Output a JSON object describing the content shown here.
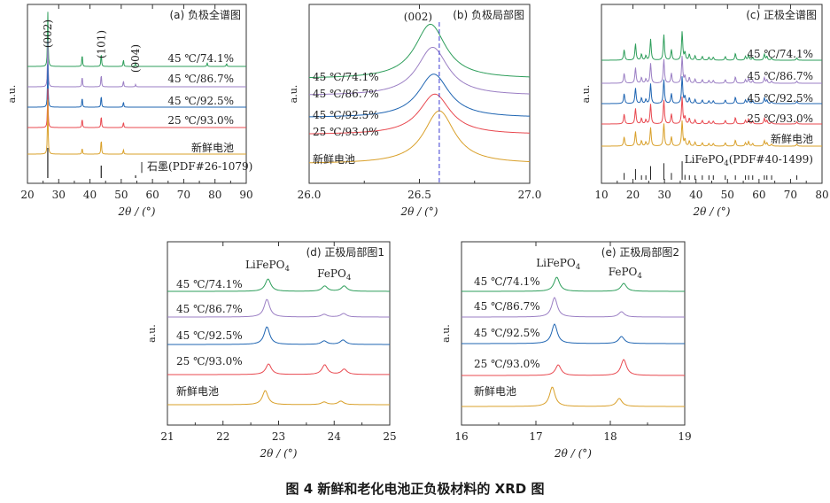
{
  "caption": "图 4   新鲜和老化电池正负极材料的 XRD 图",
  "colors": {
    "45 ℃/74.1%": "#2e9e5b",
    "45 ℃/86.7%": "#9b7fc4",
    "45 ℃/92.5%": "#1f65b2",
    "25 ℃/93.0%": "#e8484f",
    "新鲜电池": "#d9a02a",
    "reference": "#222222",
    "dashed": "#3a3ad0"
  },
  "chart_data": [
    {
      "id": "a",
      "type": "line",
      "title": "(a) 负极全谱图",
      "xlabel": "2θ / (°)",
      "ylabel": "a.u.",
      "xlim": [
        20,
        90
      ],
      "xticks": [
        20,
        30,
        40,
        50,
        60,
        70,
        80,
        90
      ],
      "series": [
        {
          "name": "45 ℃/74.1%",
          "peaks": [
            [
              26.5,
              70
            ],
            [
              37.5,
              16
            ],
            [
              43.6,
              18
            ],
            [
              50.7,
              9
            ],
            [
              54.6,
              4
            ],
            [
              77.5,
              5
            ],
            [
              83.7,
              4
            ]
          ]
        },
        {
          "name": "45 ℃/86.7%",
          "peaks": [
            [
              26.5,
              60
            ],
            [
              37.5,
              14
            ],
            [
              43.6,
              17
            ],
            [
              50.7,
              8
            ],
            [
              54.6,
              3
            ]
          ]
        },
        {
          "name": "45 ℃/92.5%",
          "peaks": [
            [
              26.5,
              55
            ],
            [
              37.5,
              13
            ],
            [
              43.6,
              16
            ],
            [
              50.7,
              7
            ]
          ]
        },
        {
          "name": "25 ℃/93.0%",
          "peaks": [
            [
              26.5,
              50
            ],
            [
              37.5,
              12
            ],
            [
              43.6,
              16
            ],
            [
              50.7,
              7
            ]
          ]
        },
        {
          "name": "新鲜电池",
          "peaks": [
            [
              26.5,
              70
            ],
            [
              37.5,
              8
            ],
            [
              43.6,
              20
            ],
            [
              50.7,
              6
            ]
          ]
        }
      ],
      "reference": {
        "name": "石墨(PDF#26-1079)",
        "lines": [
          [
            26.5,
            34
          ],
          [
            43.6,
            14
          ],
          [
            54.6,
            3
          ]
        ]
      },
      "annotations": [
        {
          "text": "(002)",
          "x": 26.5
        },
        {
          "text": "(101)",
          "x": 43.6
        },
        {
          "text": "(004)",
          "x": 54.6
        }
      ]
    },
    {
      "id": "b",
      "type": "line",
      "title": "(b) 负极局部图",
      "xlabel": "2θ / (°)",
      "ylabel": "a.u.",
      "xlim": [
        26.0,
        27.0
      ],
      "xticks": [
        26.0,
        26.5,
        27.0
      ],
      "xtick_labels": [
        "26.0",
        "26.5",
        "27.0"
      ],
      "series": [
        {
          "name": "45 ℃/74.1%",
          "center": 26.55,
          "height": 70
        },
        {
          "name": "45 ℃/86.7%",
          "center": 26.56,
          "height": 62
        },
        {
          "name": "45 ℃/92.5%",
          "center": 26.565,
          "height": 56
        },
        {
          "name": "25 ℃/93.0%",
          "center": 26.57,
          "height": 52
        },
        {
          "name": "新鲜电池",
          "center": 26.59,
          "height": 68
        }
      ],
      "dashed_line_x": 26.59,
      "annotations": [
        {
          "text": "(002)",
          "x": 26.55
        }
      ]
    },
    {
      "id": "c",
      "type": "line",
      "title": "(c) 正极全谱图",
      "xlabel": "2θ / (°)",
      "ylabel": "a.u.",
      "xlim": [
        10,
        80
      ],
      "xticks": [
        10,
        20,
        30,
        40,
        50,
        60,
        70,
        80
      ],
      "series_names": [
        "45 ℃/74.1%",
        "45 ℃/86.7%",
        "45 ℃/92.5%",
        "25 ℃/93.0%",
        "新鲜电池"
      ],
      "peaks": [
        [
          17.2,
          14
        ],
        [
          20.8,
          22
        ],
        [
          22.7,
          8
        ],
        [
          24.1,
          6
        ],
        [
          25.6,
          28
        ],
        [
          29.8,
          34
        ],
        [
          32.2,
          14
        ],
        [
          35.6,
          38
        ],
        [
          36.5,
          10
        ],
        [
          37.9,
          8
        ],
        [
          39.7,
          6
        ],
        [
          42.0,
          5
        ],
        [
          44.1,
          4
        ],
        [
          45.5,
          4
        ],
        [
          49.3,
          5
        ],
        [
          52.5,
          9
        ],
        [
          55.7,
          5
        ],
        [
          56.7,
          7
        ],
        [
          58.0,
          4
        ],
        [
          61.7,
          8
        ],
        [
          62.5,
          5
        ],
        [
          64.0,
          3
        ],
        [
          72.0,
          3
        ]
      ],
      "reference": {
        "name": "LiFePO4(PDF#40-1499)"
      }
    },
    {
      "id": "d",
      "type": "line",
      "title": "(d) 正极局部图1",
      "xlabel": "2θ / (°)",
      "ylabel": "a.u.",
      "xlim": [
        21,
        25
      ],
      "xticks": [
        21,
        22,
        23,
        24,
        25
      ],
      "peak_labels": [
        {
          "text": "LiFePO4",
          "x": 22.8
        },
        {
          "text": "FePO4",
          "x": 24.0
        }
      ],
      "series": [
        {
          "name": "45 ℃/74.1%",
          "peaks": [
            [
              22.81,
              14
            ],
            [
              23.83,
              6
            ],
            [
              24.18,
              6
            ]
          ]
        },
        {
          "name": "45 ℃/86.7%",
          "peaks": [
            [
              22.79,
              20
            ],
            [
              23.82,
              3
            ],
            [
              24.17,
              4
            ]
          ]
        },
        {
          "name": "45 ℃/92.5%",
          "peaks": [
            [
              22.79,
              20
            ],
            [
              23.82,
              4
            ],
            [
              24.16,
              5
            ]
          ]
        },
        {
          "name": "25 ℃/93.0%",
          "peaks": [
            [
              22.82,
              12
            ],
            [
              23.83,
              11
            ],
            [
              24.18,
              6
            ]
          ]
        },
        {
          "name": "新鲜电池",
          "peaks": [
            [
              22.76,
              16
            ],
            [
              23.82,
              3
            ],
            [
              24.12,
              4
            ]
          ]
        }
      ]
    },
    {
      "id": "e",
      "type": "line",
      "title": "(e) 正极局部图2",
      "xlabel": "2θ / (°)",
      "ylabel": "a.u.",
      "xlim": [
        16,
        19
      ],
      "xticks": [
        16,
        17,
        18,
        19
      ],
      "peak_labels": [
        {
          "text": "LiFePO4",
          "x": 17.3
        },
        {
          "text": "FePO4",
          "x": 18.2
        }
      ],
      "series": [
        {
          "name": "45 ℃/74.1%",
          "peaks": [
            [
              17.28,
              16
            ],
            [
              18.18,
              9
            ]
          ]
        },
        {
          "name": "45 ℃/86.7%",
          "peaks": [
            [
              17.25,
              22
            ],
            [
              18.15,
              6
            ]
          ]
        },
        {
          "name": "45 ℃/92.5%",
          "peaks": [
            [
              17.25,
              22
            ],
            [
              18.15,
              8
            ]
          ]
        },
        {
          "name": "25 ℃/93.0%",
          "peaks": [
            [
              17.3,
              12
            ],
            [
              18.18,
              18
            ]
          ]
        },
        {
          "name": "新鲜电池",
          "peaks": [
            [
              17.22,
              22
            ],
            [
              18.12,
              9
            ]
          ]
        }
      ]
    }
  ]
}
